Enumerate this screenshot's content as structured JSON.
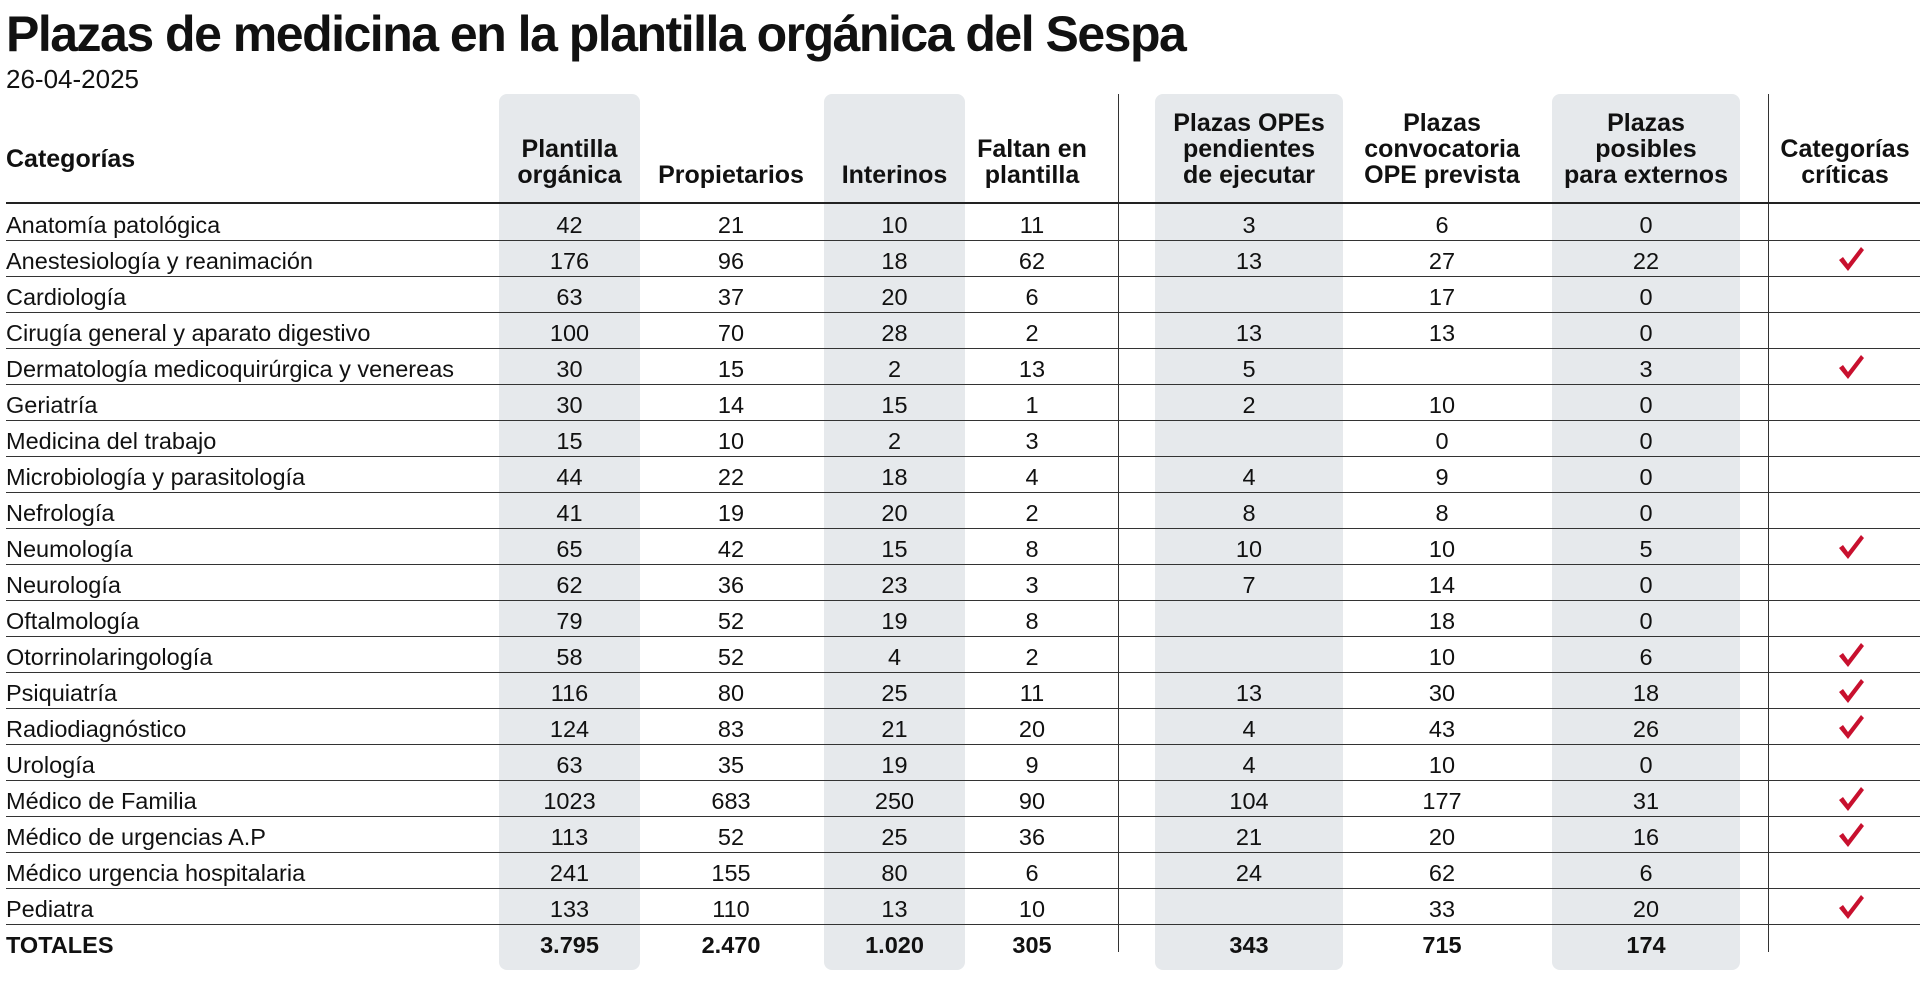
{
  "title": "Plazas de medicina en la plantilla orgánica del Sespa",
  "date": "26-04-2025",
  "colors": {
    "check": "#c8102e",
    "band": "#e6e9ec",
    "text": "#111111"
  },
  "headers": [
    "Categorías",
    "Plantilla\norgánica",
    "Propietarios",
    "Interinos",
    "Faltan en\nplantilla",
    "Plazas OPEs\npendientes\nde ejecutar",
    "Plazas\nconvocatoria\nOPE prevista",
    "Plazas\nposibles\npara externos",
    "Categorías\ncríticas"
  ],
  "rows": [
    {
      "cat": "Anatomía patológica",
      "plantilla": "42",
      "propietarios": "21",
      "interinos": "10",
      "faltan": "11",
      "opes": "3",
      "convocatoria": "6",
      "externos": "0",
      "critica": false
    },
    {
      "cat": "Anestesiología y reanimación",
      "plantilla": "176",
      "propietarios": "96",
      "interinos": "18",
      "faltan": "62",
      "opes": "13",
      "convocatoria": "27",
      "externos": "22",
      "critica": true
    },
    {
      "cat": "Cardiología",
      "plantilla": "63",
      "propietarios": "37",
      "interinos": "20",
      "faltan": "6",
      "opes": "",
      "convocatoria": "17",
      "externos": "0",
      "critica": false
    },
    {
      "cat": "Cirugía general y aparato digestivo",
      "plantilla": "100",
      "propietarios": "70",
      "interinos": "28",
      "faltan": "2",
      "opes": "13",
      "convocatoria": "13",
      "externos": "0",
      "critica": false
    },
    {
      "cat": "Dermatología medicoquirúrgica y venereas",
      "plantilla": "30",
      "propietarios": "15",
      "interinos": "2",
      "faltan": "13",
      "opes": "5",
      "convocatoria": "",
      "externos": "3",
      "critica": true
    },
    {
      "cat": "Geriatría",
      "plantilla": "30",
      "propietarios": "14",
      "interinos": "15",
      "faltan": "1",
      "opes": "2",
      "convocatoria": "10",
      "externos": "0",
      "critica": false
    },
    {
      "cat": "Medicina del trabajo",
      "plantilla": "15",
      "propietarios": "10",
      "interinos": "2",
      "faltan": "3",
      "opes": "",
      "convocatoria": "0",
      "externos": "0",
      "critica": false
    },
    {
      "cat": "Microbiología y parasitología",
      "plantilla": "44",
      "propietarios": "22",
      "interinos": "18",
      "faltan": "4",
      "opes": "4",
      "convocatoria": "9",
      "externos": "0",
      "critica": false
    },
    {
      "cat": "Nefrología",
      "plantilla": "41",
      "propietarios": "19",
      "interinos": "20",
      "faltan": "2",
      "opes": "8",
      "convocatoria": "8",
      "externos": "0",
      "critica": false
    },
    {
      "cat": "Neumología",
      "plantilla": "65",
      "propietarios": "42",
      "interinos": "15",
      "faltan": "8",
      "opes": "10",
      "convocatoria": "10",
      "externos": "5",
      "critica": true
    },
    {
      "cat": "Neurología",
      "plantilla": "62",
      "propietarios": "36",
      "interinos": "23",
      "faltan": "3",
      "opes": "7",
      "convocatoria": "14",
      "externos": "0",
      "critica": false
    },
    {
      "cat": "Oftalmología",
      "plantilla": "79",
      "propietarios": "52",
      "interinos": "19",
      "faltan": "8",
      "opes": "",
      "convocatoria": "18",
      "externos": "0",
      "critica": false
    },
    {
      "cat": "Otorrinolaringología",
      "plantilla": "58",
      "propietarios": "52",
      "interinos": "4",
      "faltan": "2",
      "opes": "",
      "convocatoria": "10",
      "externos": "6",
      "critica": true
    },
    {
      "cat": "Psiquiatría",
      "plantilla": "116",
      "propietarios": "80",
      "interinos": "25",
      "faltan": "11",
      "opes": "13",
      "convocatoria": "30",
      "externos": "18",
      "critica": true
    },
    {
      "cat": "Radiodiagnóstico",
      "plantilla": "124",
      "propietarios": "83",
      "interinos": "21",
      "faltan": "20",
      "opes": "4",
      "convocatoria": "43",
      "externos": "26",
      "critica": true
    },
    {
      "cat": "Urología",
      "plantilla": "63",
      "propietarios": "35",
      "interinos": "19",
      "faltan": "9",
      "opes": "4",
      "convocatoria": "10",
      "externos": "0",
      "critica": false
    },
    {
      "cat": "Médico de Familia",
      "plantilla": "1023",
      "propietarios": "683",
      "interinos": "250",
      "faltan": "90",
      "opes": "104",
      "convocatoria": "177",
      "externos": "31",
      "critica": true
    },
    {
      "cat": "Médico de urgencias A.P",
      "plantilla": "113",
      "propietarios": "52",
      "interinos": "25",
      "faltan": "36",
      "opes": "21",
      "convocatoria": "20",
      "externos": "16",
      "critica": true
    },
    {
      "cat": "Médico urgencia hospitalaria",
      "plantilla": "241",
      "propietarios": "155",
      "interinos": "80",
      "faltan": "6",
      "opes": "24",
      "convocatoria": "62",
      "externos": "6",
      "critica": false
    },
    {
      "cat": "Pediatra",
      "plantilla": "133",
      "propietarios": "110",
      "interinos": "13",
      "faltan": "10",
      "opes": "",
      "convocatoria": "33",
      "externos": "20",
      "critica": true
    }
  ],
  "totals": {
    "cat": "TOTALES",
    "plantilla": "3.795",
    "propietarios": "2.470",
    "interinos": "1.020",
    "faltan": "305",
    "opes": "343",
    "convocatoria": "715",
    "externos": "174"
  }
}
